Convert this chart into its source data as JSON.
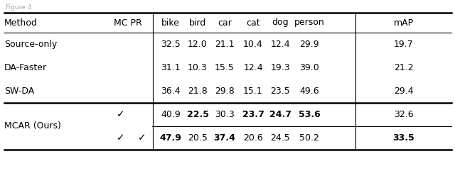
{
  "title_text": "Figure 4",
  "background_color": "#ffffff",
  "font_size": 9.0,
  "rows": [
    {
      "method": "Source-only",
      "mc": "",
      "pr": "",
      "vals": [
        "32.5",
        "12.0",
        "21.1",
        "10.4",
        "12.4",
        "29.9",
        "19.7"
      ],
      "bold": [
        false,
        false,
        false,
        false,
        false,
        false,
        false
      ]
    },
    {
      "method": "DA-Faster",
      "mc": "",
      "pr": "",
      "vals": [
        "31.1",
        "10.3",
        "15.5",
        "12.4",
        "19.3",
        "39.0",
        "21.2"
      ],
      "bold": [
        false,
        false,
        false,
        false,
        false,
        false,
        false
      ]
    },
    {
      "method": "SW-DA",
      "mc": "",
      "pr": "",
      "vals": [
        "36.4",
        "21.8",
        "29.8",
        "15.1",
        "23.5",
        "49.6",
        "29.4"
      ],
      "bold": [
        false,
        false,
        false,
        false,
        false,
        false,
        false
      ]
    },
    {
      "method": "MCAR (Ours)",
      "mc": "✓",
      "pr": "",
      "vals": [
        "40.9",
        "22.5",
        "30.3",
        "23.7",
        "24.7",
        "53.6",
        "32.6"
      ],
      "bold": [
        false,
        true,
        false,
        true,
        true,
        true,
        false
      ]
    },
    {
      "method": "",
      "mc": "✓",
      "pr": "✓",
      "vals": [
        "47.9",
        "20.5",
        "37.4",
        "20.6",
        "24.5",
        "50.2",
        "33.5"
      ],
      "bold": [
        true,
        false,
        true,
        false,
        false,
        false,
        true
      ]
    }
  ]
}
